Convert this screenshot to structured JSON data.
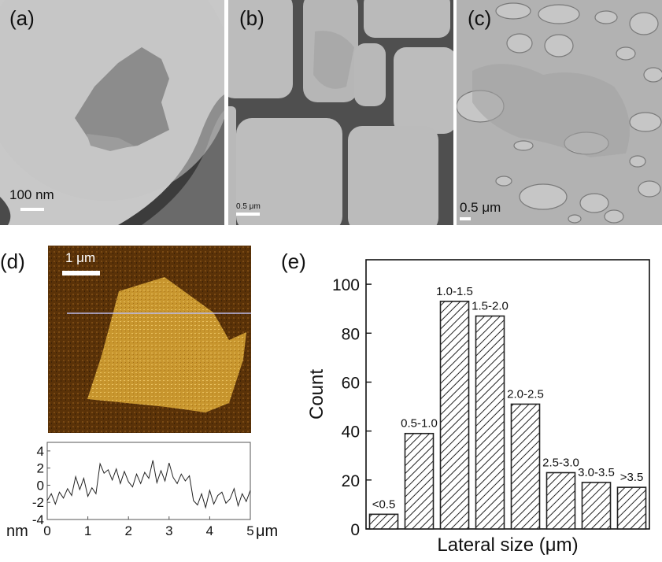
{
  "panels": {
    "a": {
      "label": "(a)",
      "scale": "100 nm"
    },
    "b": {
      "label": "(b)",
      "scale": "0.5 μm"
    },
    "c": {
      "label": "(c)",
      "scale": "0.5 μm"
    },
    "d": {
      "label": "(d)",
      "scale": "1 μm"
    },
    "e": {
      "label": "(e)"
    }
  },
  "colors": {
    "tem_background": "#b4b4b4",
    "afm_background": "#5a3208",
    "afm_flake": "#c8962e",
    "bar_stroke": "#222222"
  },
  "chart_data": [
    {
      "type": "line",
      "panel": "d",
      "xlabel": "μm",
      "ylabel": "nm",
      "xlim": [
        0,
        5
      ],
      "ylim": [
        -4,
        5
      ],
      "xticks": [
        0,
        1,
        2,
        3,
        4,
        5
      ],
      "yticks": [
        4,
        2,
        0,
        -2,
        -4
      ],
      "series": [
        {
          "x": [
            0,
            0.1,
            0.2,
            0.3,
            0.4,
            0.5,
            0.6,
            0.7,
            0.8,
            0.9,
            1.0,
            1.1,
            1.2,
            1.3,
            1.4,
            1.5,
            1.6,
            1.7,
            1.8,
            1.9,
            2.0,
            2.1,
            2.2,
            2.3,
            2.4,
            2.5,
            2.6,
            2.7,
            2.8,
            2.9,
            3.0,
            3.1,
            3.2,
            3.3,
            3.4,
            3.5,
            3.6,
            3.7,
            3.8,
            3.9,
            4.0,
            4.1,
            4.2,
            4.3,
            4.4,
            4.5,
            4.6,
            4.7,
            4.8,
            4.9,
            5.0
          ],
          "y": [
            -1.8,
            -1.0,
            -2.2,
            -0.8,
            -1.5,
            -0.4,
            -1.2,
            1.0,
            -0.5,
            0.8,
            -1.3,
            -0.3,
            -1.0,
            2.5,
            1.4,
            1.8,
            0.6,
            1.9,
            0.2,
            1.6,
            0.4,
            -0.2,
            1.3,
            0.2,
            1.5,
            0.8,
            2.9,
            0.3,
            1.7,
            0.5,
            2.6,
            0.9,
            0.2,
            1.3,
            0.5,
            1.1,
            -1.8,
            -2.3,
            -1.0,
            -2.6,
            -0.6,
            -2.2,
            -1.2,
            -0.8,
            -2.1,
            -1.6,
            -0.4,
            -2.4,
            -1.0,
            -1.9,
            -0.6
          ]
        }
      ]
    },
    {
      "type": "bar",
      "panel": "e",
      "title": "",
      "xlabel": "Lateral size (μm)",
      "ylabel": "Count",
      "ylim": [
        0,
        110
      ],
      "yticks": [
        0,
        20,
        40,
        60,
        80,
        100
      ],
      "categories": [
        "<0.5",
        "0.5-1.0",
        "1.0-1.5",
        "1.5-2.0",
        "2.0-2.5",
        "2.5-3.0",
        "3.0-3.5",
        ">3.5"
      ],
      "values": [
        6,
        39,
        93,
        87,
        51,
        23,
        19,
        17
      ],
      "bar_pattern": "hatched"
    }
  ]
}
